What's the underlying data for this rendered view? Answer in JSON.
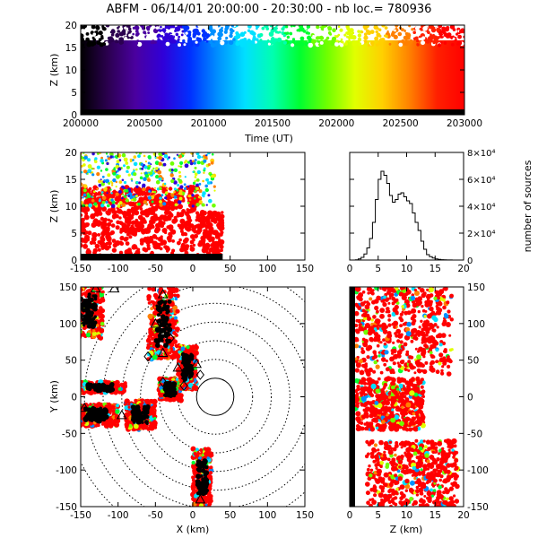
{
  "figure_title": "ABFM - 06/14/01 20:00:00 - 20:30:00 - nb loc.= 780936",
  "colors": {
    "rainbow": [
      "#000000",
      "#2b0050",
      "#4a00a0",
      "#3000d8",
      "#0030ff",
      "#0090ff",
      "#00e0ff",
      "#00ffb0",
      "#00ff30",
      "#70ff00",
      "#e0ff00",
      "#ffd000",
      "#ff8000",
      "#ff2000",
      "#ff0000"
    ],
    "source_fill": "#ff0000",
    "foreground": "#000000",
    "background": "#ffffff"
  },
  "chart_data": [
    {
      "id": "time_height",
      "type": "scatter",
      "title": "ABFM - 06/14/01 20:00:00 - 20:30:00 - nb loc.= 780936",
      "xlabel": "Time (UT)",
      "ylabel": "Z (km)",
      "xlim": [
        200000,
        203000
      ],
      "ylim": [
        0,
        20
      ],
      "x_ticks": [
        "200000",
        "200500",
        "201000",
        "201500",
        "202000",
        "202500",
        "203000"
      ],
      "y_ticks": [
        "0",
        "5",
        "10",
        "15",
        "20"
      ],
      "colored_by": "time",
      "source_altitude_range_km": [
        0,
        20
      ]
    },
    {
      "id": "x_height",
      "type": "scatter",
      "xlabel": "",
      "ylabel": "Z (km)",
      "xlim": [
        -150,
        150
      ],
      "ylim": [
        0,
        20
      ],
      "x_ticks": [
        "-150",
        "-100",
        "-50",
        "0",
        "50",
        "100",
        "150"
      ],
      "y_ticks": [
        "0",
        "5",
        "10",
        "15",
        "20"
      ],
      "source_x_range_km": [
        -155,
        40
      ]
    },
    {
      "id": "altitude_histogram",
      "type": "line",
      "xlabel": "",
      "ylabel": "number of sources",
      "xlim": [
        0,
        20
      ],
      "ylim": [
        0,
        80000
      ],
      "x_ticks": [
        "0",
        "5",
        "10",
        "15",
        "20"
      ],
      "y_ticks": [
        "0",
        "2×10⁴",
        "4×10⁴",
        "6×10⁴",
        "8×10⁴"
      ],
      "y_axis_side": "right",
      "x": [
        0,
        0.5,
        1,
        1.5,
        2,
        2.5,
        3,
        3.5,
        4,
        4.5,
        5,
        5.5,
        6,
        6.5,
        7,
        7.5,
        8,
        8.5,
        9,
        9.5,
        10,
        10.5,
        11,
        11.5,
        12,
        12.5,
        13,
        13.5,
        14,
        14.5,
        15,
        15.5,
        16,
        16.5,
        17,
        17.5,
        18,
        18.5,
        19,
        19.5,
        20
      ],
      "values": [
        0,
        0,
        200,
        800,
        2000,
        4500,
        9000,
        16000,
        28000,
        45000,
        60000,
        66000,
        63000,
        57000,
        48000,
        43000,
        45000,
        49000,
        50000,
        47000,
        44000,
        42000,
        35000,
        28000,
        22000,
        14000,
        8000,
        4000,
        2500,
        1500,
        800,
        500,
        300,
        200,
        100,
        60,
        30,
        20,
        10,
        0,
        0
      ]
    },
    {
      "id": "plan_view",
      "type": "scatter",
      "xlabel": "X (km)",
      "ylabel": "Y (km)",
      "xlim": [
        -150,
        150
      ],
      "ylim": [
        -150,
        150
      ],
      "x_ticks": [
        "-150",
        "-100",
        "-50",
        "0",
        "50",
        "100",
        "150"
      ],
      "y_ticks": [
        "-150",
        "-100",
        "-50",
        "0",
        "50",
        "100",
        "150"
      ],
      "range_rings_km": [
        25,
        50,
        75,
        100,
        125,
        150,
        175,
        200
      ],
      "range_ring_center_km": [
        30,
        0
      ],
      "storm_regions_km": [
        {
          "x": [
            -160,
            -120
          ],
          "y": [
            80,
            155
          ]
        },
        {
          "x": [
            -60,
            -20
          ],
          "y": [
            50,
            150
          ]
        },
        {
          "x": [
            -20,
            5
          ],
          "y": [
            10,
            70
          ]
        },
        {
          "x": [
            -160,
            -100
          ],
          "y": [
            -40,
            -10
          ]
        },
        {
          "x": [
            -160,
            -90
          ],
          "y": [
            5,
            20
          ]
        },
        {
          "x": [
            -90,
            -50
          ],
          "y": [
            -45,
            -5
          ]
        },
        {
          "x": [
            -45,
            -15
          ],
          "y": [
            -5,
            25
          ]
        },
        {
          "x": [
            0,
            25
          ],
          "y": [
            -150,
            -70
          ]
        }
      ],
      "sensor_markers_km": [
        {
          "x": -130,
          "y": 148
        },
        {
          "x": -105,
          "y": 148
        },
        {
          "x": -40,
          "y": 140
        },
        {
          "x": -50,
          "y": 100
        },
        {
          "x": -40,
          "y": 60
        },
        {
          "x": -20,
          "y": 40
        },
        {
          "x": 5,
          "y": 45
        },
        {
          "x": -145,
          "y": -15
        },
        {
          "x": -95,
          "y": -25
        },
        {
          "x": 10,
          "y": -140
        }
      ],
      "diamond_markers_km": [
        {
          "x": -60,
          "y": 55
        },
        {
          "x": -40,
          "y": 20
        },
        {
          "x": -30,
          "y": 80
        },
        {
          "x": -12,
          "y": 15
        },
        {
          "x": 10,
          "y": 30
        }
      ]
    },
    {
      "id": "height_y",
      "type": "scatter",
      "xlabel": "Z (km)",
      "ylabel": "",
      "xlim": [
        0,
        20
      ],
      "ylim": [
        -150,
        150
      ],
      "x_ticks": [
        "0",
        "5",
        "10",
        "15",
        "20"
      ],
      "y_ticks": [
        "-150",
        "-100",
        "-50",
        "0",
        "50",
        "100",
        "150"
      ]
    }
  ]
}
